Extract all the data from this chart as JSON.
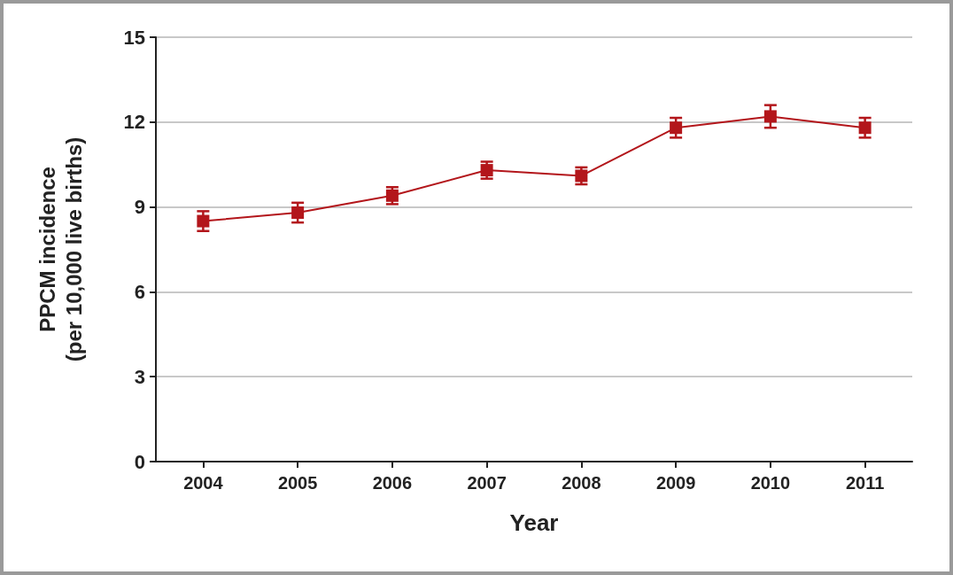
{
  "chart_data": {
    "type": "line",
    "xlabel": "Year",
    "ylabel": "PPCM incidence\n(per 10,000 live births)",
    "categories": [
      "2004",
      "2005",
      "2006",
      "2007",
      "2008",
      "2009",
      "2010",
      "2011"
    ],
    "series": [
      {
        "color": "#b3161b",
        "values": [
          8.5,
          8.8,
          9.4,
          10.3,
          10.1,
          11.8,
          12.2,
          11.8
        ],
        "errors": [
          0.35,
          0.35,
          0.3,
          0.3,
          0.3,
          0.35,
          0.4,
          0.35
        ]
      }
    ],
    "ylim": [
      0,
      15
    ],
    "yticks": [
      0,
      3,
      6,
      9,
      12,
      15
    ],
    "grid": "y",
    "marker": "square",
    "line_style": "solid"
  }
}
